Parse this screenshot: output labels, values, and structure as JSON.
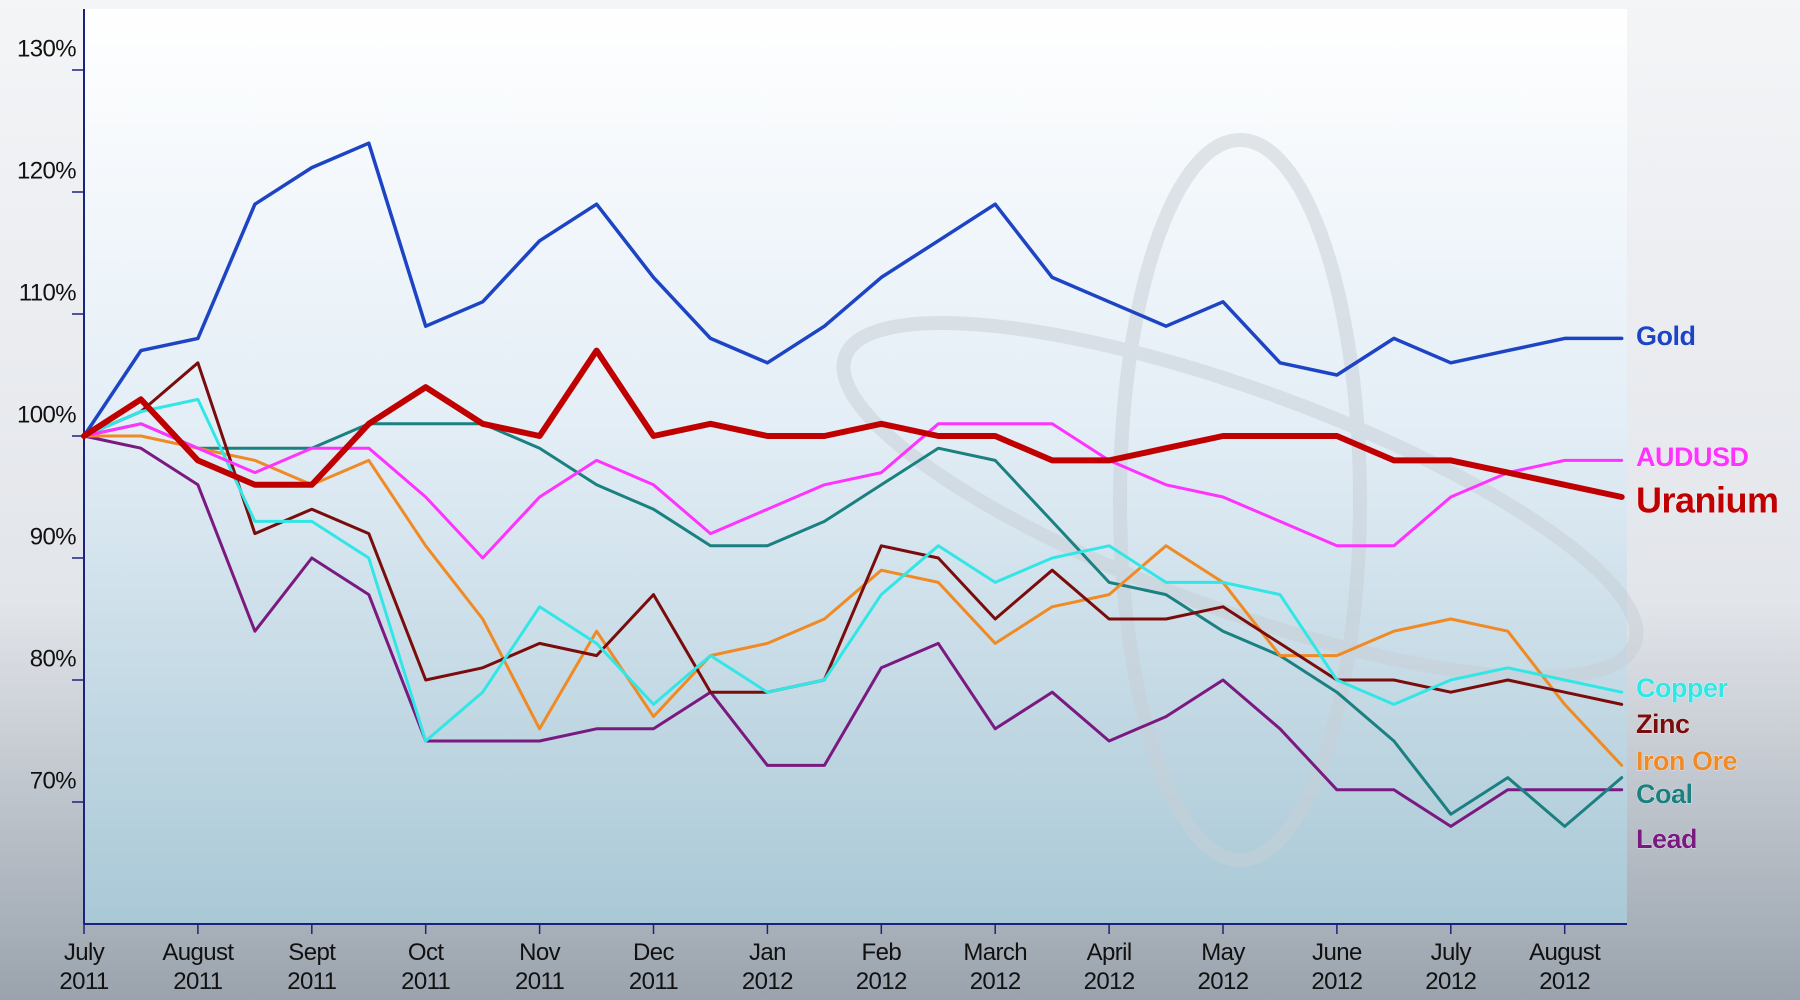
{
  "chart_data": {
    "type": "line",
    "categories": [
      "July 2011",
      null,
      "August 2011",
      null,
      "Sept 2011",
      null,
      "Oct 2011",
      null,
      "Nov 2011",
      null,
      "Dec 2011",
      null,
      "Jan 2012",
      null,
      "Feb 2012",
      null,
      "March 2012",
      null,
      "April 2012",
      null,
      "May 2012",
      null,
      "June 2012",
      null,
      "July 2012",
      null,
      "August 2012",
      null
    ],
    "ylim": [
      60,
      135
    ],
    "yticks": [
      {
        "value": 70,
        "label": "70%"
      },
      {
        "value": 80,
        "label": "80%"
      },
      {
        "value": 90,
        "label": "90%"
      },
      {
        "value": 100,
        "label": "100%"
      },
      {
        "value": 110,
        "label": "110%"
      },
      {
        "value": 120,
        "label": "120%"
      },
      {
        "value": 130,
        "label": "130%"
      }
    ],
    "series": [
      {
        "name": "Gold",
        "color": "#1c44c4",
        "values": [
          100,
          107,
          108,
          119,
          122,
          124,
          109,
          111,
          116,
          119,
          113,
          108,
          106,
          109,
          113,
          116,
          119,
          113,
          111,
          109,
          111,
          106,
          105,
          108,
          106,
          107,
          108,
          108
        ]
      },
      {
        "name": "AUDUSD",
        "color": "#ff33ff",
        "values": [
          100,
          101,
          99,
          97,
          99,
          99,
          95,
          90,
          95,
          98,
          96,
          92,
          94,
          96,
          97,
          101,
          101,
          101,
          98,
          96,
          95,
          93,
          91,
          91,
          95,
          97,
          98,
          98
        ]
      },
      {
        "name": "Uranium",
        "color": "#c00000",
        "values": [
          100,
          103,
          98,
          96,
          96,
          101,
          104,
          101,
          100,
          107,
          100,
          101,
          100,
          100,
          101,
          100,
          100,
          98,
          98,
          99,
          100,
          100,
          100,
          98,
          98,
          97,
          96,
          95
        ]
      },
      {
        "name": "Copper",
        "color": "#33e6e6",
        "values": [
          100,
          102,
          103,
          93,
          93,
          90,
          75,
          79,
          86,
          83,
          78,
          82,
          79,
          80,
          87,
          91,
          88,
          90,
          91,
          88,
          88,
          87,
          80,
          78,
          80,
          81,
          80,
          79
        ]
      },
      {
        "name": "Zinc",
        "color": "#7a0c0c",
        "values": [
          100,
          102,
          106,
          92,
          94,
          92,
          80,
          81,
          83,
          82,
          87,
          79,
          79,
          80,
          91,
          90,
          85,
          89,
          85,
          85,
          86,
          83,
          80,
          80,
          79,
          80,
          79,
          78
        ]
      },
      {
        "name": "Iron Ore",
        "color": "#f08a24",
        "values": [
          100,
          100,
          99,
          98,
          96,
          98,
          91,
          85,
          76,
          84,
          77,
          82,
          83,
          85,
          89,
          88,
          83,
          86,
          87,
          91,
          88,
          82,
          82,
          84,
          85,
          84,
          78,
          73
        ]
      },
      {
        "name": "Coal",
        "color": "#1a8080",
        "values": [
          100,
          101,
          99,
          99,
          99,
          101,
          101,
          101,
          99,
          96,
          94,
          91,
          91,
          93,
          96,
          99,
          98,
          93,
          88,
          87,
          84,
          82,
          79,
          75,
          69,
          72,
          68,
          72
        ]
      },
      {
        "name": "Lead",
        "color": "#7a1a80",
        "values": [
          100,
          99,
          96,
          84,
          90,
          87,
          75,
          75,
          75,
          76,
          76,
          79,
          73,
          73,
          81,
          83,
          76,
          79,
          75,
          77,
          80,
          76,
          71,
          71,
          68,
          71,
          71,
          71
        ]
      }
    ]
  }
}
